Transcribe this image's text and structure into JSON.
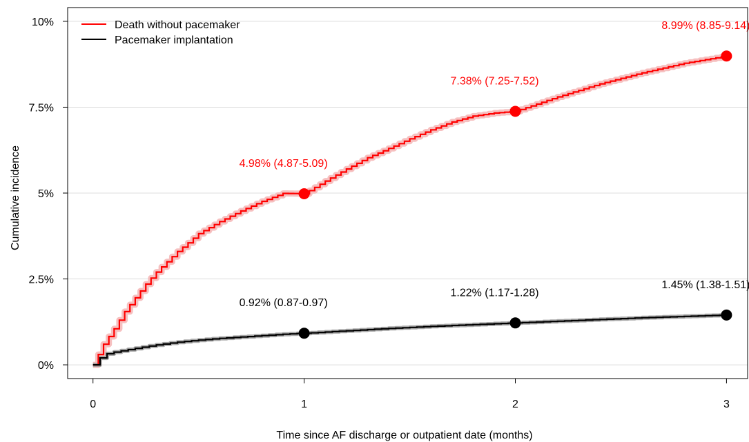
{
  "chart_data": {
    "type": "line",
    "xlabel": "Time since AF  discharge or outpatient date (months)",
    "ylabel": "Cumulative incidence",
    "xlim": [
      -0.12,
      3.1
    ],
    "ylim": [
      -0.4,
      10.4
    ],
    "x_ticks": [
      0,
      1,
      2,
      3
    ],
    "x_tick_labels": [
      "0",
      "1",
      "2",
      "3"
    ],
    "y_ticks": [
      0,
      2.5,
      5,
      7.5,
      10
    ],
    "y_tick_labels": [
      "0%",
      "2.5%",
      "5%",
      "7.5%",
      "10%"
    ],
    "grid": "horizontal",
    "legend_position": "top-left",
    "series": [
      {
        "name": "Death without pacemaker",
        "color": "#ff0000",
        "band_color": "#f5b5b5",
        "curve": {
          "x": [
            0,
            0.05,
            0.1,
            0.15,
            0.2,
            0.25,
            0.3,
            0.35,
            0.4,
            0.45,
            0.5,
            0.6,
            0.7,
            0.8,
            0.9,
            1.0,
            1.1,
            1.2,
            1.3,
            1.4,
            1.5,
            1.6,
            1.7,
            1.8,
            1.9,
            2.0,
            2.2,
            2.4,
            2.6,
            2.8,
            3.0
          ],
          "y": [
            0,
            0.6,
            1.05,
            1.55,
            1.95,
            2.35,
            2.7,
            3.0,
            3.3,
            3.55,
            3.82,
            4.17,
            4.48,
            4.76,
            4.99,
            4.98,
            5.35,
            5.7,
            6.03,
            6.3,
            6.58,
            6.84,
            7.07,
            7.24,
            7.33,
            7.38,
            7.8,
            8.18,
            8.5,
            8.78,
            8.99
          ]
        },
        "markers": [
          {
            "x": 1,
            "y": 4.98,
            "label": "4.98% (4.87-5.09)"
          },
          {
            "x": 2,
            "y": 7.38,
            "label": "7.38% (7.25-7.52)"
          },
          {
            "x": 3,
            "y": 8.99,
            "label": "8.99% (8.85-9.14)"
          }
        ]
      },
      {
        "name": "Pacemaker implantation",
        "color": "#000000",
        "band_color": "#9a9a9a",
        "curve": {
          "x": [
            0,
            0.05,
            0.1,
            0.2,
            0.3,
            0.4,
            0.5,
            0.6,
            0.7,
            0.8,
            0.9,
            1.0,
            1.2,
            1.4,
            1.6,
            1.8,
            2.0,
            2.2,
            2.4,
            2.6,
            2.8,
            3.0
          ],
          "y": [
            0,
            0.3,
            0.37,
            0.48,
            0.58,
            0.66,
            0.72,
            0.77,
            0.81,
            0.85,
            0.89,
            0.92,
            0.99,
            1.06,
            1.12,
            1.17,
            1.22,
            1.27,
            1.32,
            1.37,
            1.41,
            1.45
          ]
        },
        "markers": [
          {
            "x": 1,
            "y": 0.92,
            "label": "0.92% (0.87-0.97)"
          },
          {
            "x": 2,
            "y": 1.22,
            "label": "1.22% (1.17-1.28)"
          },
          {
            "x": 3,
            "y": 1.45,
            "label": "1.45% (1.38-1.51)"
          }
        ]
      }
    ]
  }
}
